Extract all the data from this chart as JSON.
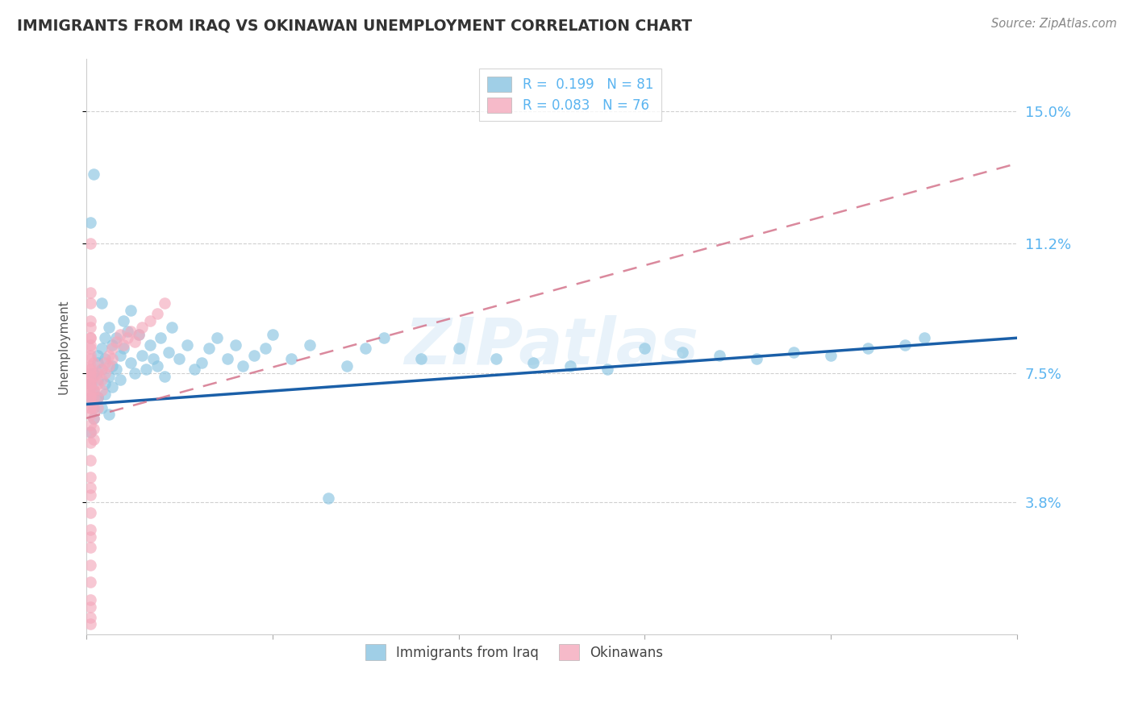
{
  "title": "IMMIGRANTS FROM IRAQ VS OKINAWAN UNEMPLOYMENT CORRELATION CHART",
  "source": "Source: ZipAtlas.com",
  "ylabel": "Unemployment",
  "ytick_labels": [
    "15.0%",
    "11.2%",
    "7.5%",
    "3.8%"
  ],
  "ytick_values": [
    0.15,
    0.112,
    0.075,
    0.038
  ],
  "xmin": 0.0,
  "xmax": 0.25,
  "ymin": 0.0,
  "ymax": 0.165,
  "N_iraq": 81,
  "N_okinawa": 76,
  "color_iraq": "#89c4e1",
  "color_okinawa": "#f4a9bc",
  "trendline_iraq_color": "#1a5fa8",
  "trendline_okinawa_color": "#d4748c",
  "watermark": "ZIPatlas",
  "background_color": "#ffffff",
  "grid_color": "#d0d0d0",
  "axis_label_color": "#5ab4f0",
  "title_color": "#333333",
  "source_color": "#888888",
  "iraq_x": [
    0.001,
    0.001,
    0.001,
    0.002,
    0.002,
    0.002,
    0.002,
    0.003,
    0.003,
    0.003,
    0.003,
    0.004,
    0.004,
    0.004,
    0.005,
    0.005,
    0.005,
    0.005,
    0.006,
    0.006,
    0.006,
    0.007,
    0.007,
    0.007,
    0.008,
    0.008,
    0.009,
    0.009,
    0.01,
    0.01,
    0.011,
    0.012,
    0.012,
    0.013,
    0.014,
    0.015,
    0.016,
    0.017,
    0.018,
    0.019,
    0.02,
    0.021,
    0.022,
    0.023,
    0.025,
    0.027,
    0.029,
    0.031,
    0.033,
    0.035,
    0.038,
    0.04,
    0.042,
    0.045,
    0.048,
    0.05,
    0.055,
    0.06,
    0.065,
    0.07,
    0.075,
    0.08,
    0.09,
    0.1,
    0.11,
    0.12,
    0.13,
    0.14,
    0.15,
    0.16,
    0.17,
    0.18,
    0.19,
    0.2,
    0.21,
    0.22,
    0.225,
    0.001,
    0.002,
    0.003,
    0.004
  ],
  "iraq_y": [
    0.072,
    0.068,
    0.058,
    0.075,
    0.065,
    0.07,
    0.062,
    0.08,
    0.073,
    0.068,
    0.078,
    0.076,
    0.082,
    0.065,
    0.079,
    0.085,
    0.072,
    0.069,
    0.074,
    0.088,
    0.063,
    0.077,
    0.083,
    0.071,
    0.085,
    0.076,
    0.08,
    0.073,
    0.082,
    0.09,
    0.087,
    0.078,
    0.093,
    0.075,
    0.086,
    0.08,
    0.076,
    0.083,
    0.079,
    0.077,
    0.085,
    0.074,
    0.081,
    0.088,
    0.079,
    0.083,
    0.076,
    0.078,
    0.082,
    0.085,
    0.079,
    0.083,
    0.077,
    0.08,
    0.082,
    0.086,
    0.079,
    0.083,
    0.039,
    0.077,
    0.082,
    0.085,
    0.079,
    0.082,
    0.079,
    0.078,
    0.077,
    0.076,
    0.082,
    0.081,
    0.08,
    0.079,
    0.081,
    0.08,
    0.082,
    0.083,
    0.085,
    0.118,
    0.132,
    0.068,
    0.095
  ],
  "okinawa_x": [
    0.001,
    0.001,
    0.001,
    0.001,
    0.001,
    0.001,
    0.001,
    0.001,
    0.001,
    0.001,
    0.001,
    0.001,
    0.001,
    0.001,
    0.001,
    0.001,
    0.001,
    0.001,
    0.001,
    0.001,
    0.001,
    0.001,
    0.001,
    0.001,
    0.001,
    0.001,
    0.001,
    0.001,
    0.001,
    0.001,
    0.001,
    0.001,
    0.001,
    0.001,
    0.001,
    0.001,
    0.001,
    0.001,
    0.001,
    0.001,
    0.002,
    0.002,
    0.002,
    0.002,
    0.002,
    0.002,
    0.002,
    0.002,
    0.003,
    0.003,
    0.003,
    0.003,
    0.004,
    0.004,
    0.004,
    0.005,
    0.005,
    0.006,
    0.006,
    0.007,
    0.007,
    0.008,
    0.009,
    0.01,
    0.011,
    0.012,
    0.013,
    0.014,
    0.015,
    0.017,
    0.019,
    0.021,
    0.001,
    0.001,
    0.001,
    0.001
  ],
  "okinawa_y": [
    0.072,
    0.068,
    0.075,
    0.065,
    0.08,
    0.073,
    0.068,
    0.082,
    0.076,
    0.079,
    0.085,
    0.072,
    0.069,
    0.074,
    0.088,
    0.063,
    0.077,
    0.083,
    0.071,
    0.085,
    0.076,
    0.058,
    0.06,
    0.065,
    0.07,
    0.055,
    0.05,
    0.045,
    0.04,
    0.035,
    0.03,
    0.025,
    0.02,
    0.015,
    0.01,
    0.008,
    0.005,
    0.003,
    0.095,
    0.09,
    0.078,
    0.074,
    0.07,
    0.068,
    0.065,
    0.062,
    0.059,
    0.056,
    0.075,
    0.072,
    0.068,
    0.065,
    0.076,
    0.073,
    0.07,
    0.078,
    0.075,
    0.08,
    0.077,
    0.082,
    0.079,
    0.084,
    0.086,
    0.083,
    0.085,
    0.087,
    0.084,
    0.086,
    0.088,
    0.09,
    0.092,
    0.095,
    0.112,
    0.098,
    0.042,
    0.028
  ]
}
